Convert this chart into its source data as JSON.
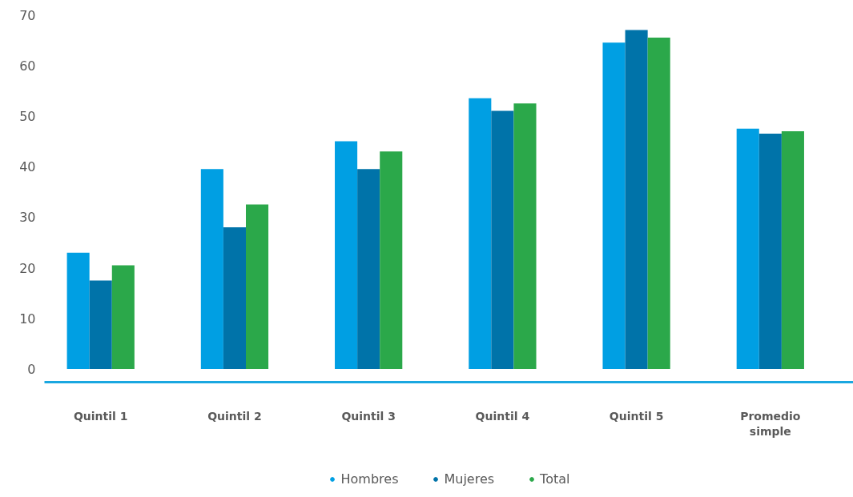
{
  "chart_data": {
    "type": "bar",
    "categories": [
      "Quintil 1",
      "Quintil 2",
      "Quintil 3",
      "Quintil 4",
      "Quintil 5",
      "Promedio simple"
    ],
    "series": [
      {
        "name": "Hombres",
        "color": "#009fe3",
        "values": [
          23,
          39.5,
          45,
          53.5,
          64.5,
          47.5
        ]
      },
      {
        "name": "Mujeres",
        "color": "#0073a9",
        "values": [
          17.5,
          28,
          39.5,
          51,
          67,
          46.5
        ]
      },
      {
        "name": "Total",
        "color": "#2ba84a",
        "values": [
          20.5,
          32.5,
          43,
          52.5,
          65.5,
          47
        ]
      }
    ],
    "ylim": [
      -2.6,
      70
    ],
    "yticks": [
      0,
      10,
      20,
      30,
      40,
      50,
      60,
      70
    ],
    "grid": false,
    "legend": "bottom"
  }
}
